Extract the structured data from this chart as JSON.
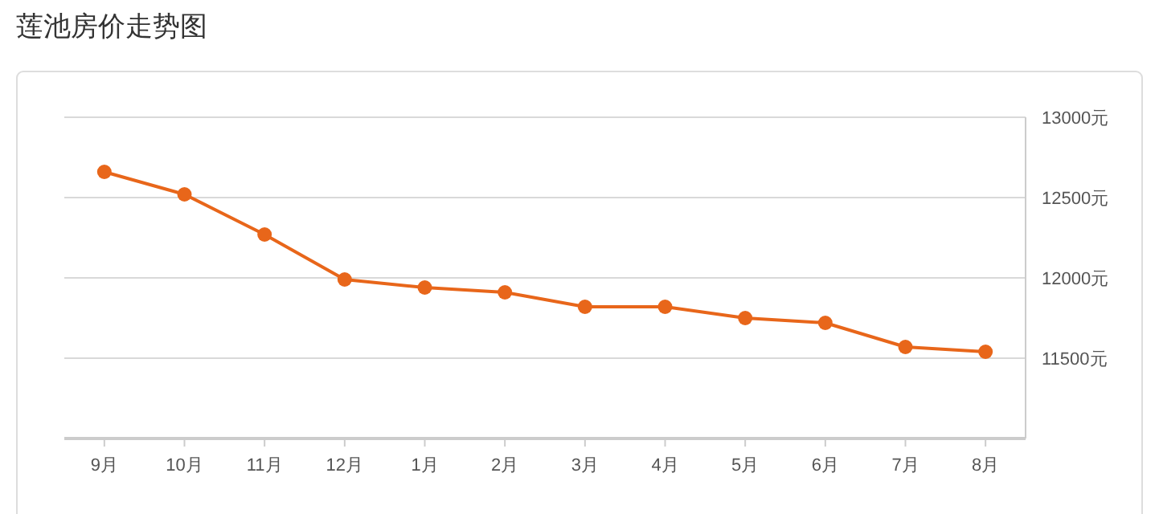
{
  "chart_data": {
    "type": "line",
    "title": "莲池房价走势图",
    "categories": [
      "9月",
      "10月",
      "11月",
      "12月",
      "1月",
      "2月",
      "3月",
      "4月",
      "5月",
      "6月",
      "7月",
      "8月"
    ],
    "series": [
      {
        "color": "#e8661a",
        "values": [
          12660,
          12520,
          12270,
          11990,
          11940,
          11910,
          11820,
          11820,
          11750,
          11720,
          11570,
          11540
        ]
      }
    ],
    "ylim": [
      11000,
      13000
    ],
    "yticks": [
      {
        "value": 11500,
        "label": "11500元"
      },
      {
        "value": 12000,
        "label": "12000元"
      },
      {
        "value": 12500,
        "label": "12500元"
      },
      {
        "value": 13000,
        "label": "13000元"
      }
    ],
    "grid": "y",
    "marker": "circle",
    "line_style": "solid"
  }
}
